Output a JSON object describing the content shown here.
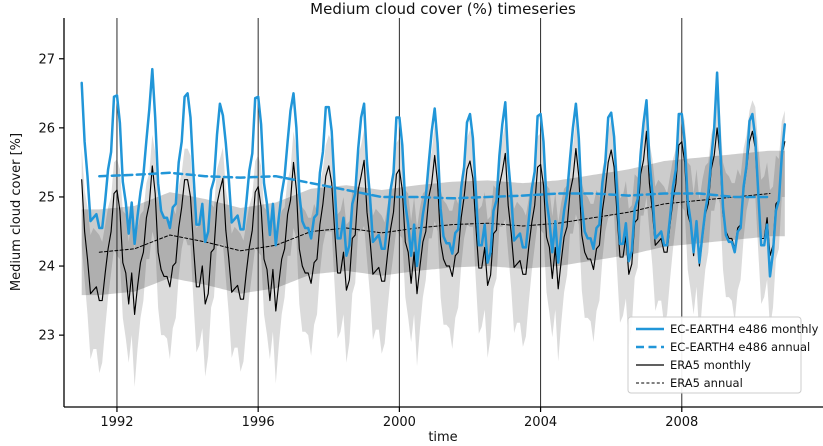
{
  "chart_data": {
    "type": "line",
    "title": "Medium cloud cover (%) timeseries",
    "xlabel": "time",
    "ylabel": "Medium cloud cover [%]",
    "xlim": [
      1990.5,
      2012.0
    ],
    "ylim": [
      21.96,
      27.59
    ],
    "x_ticks": [
      1992,
      1996,
      2000,
      2004,
      2008
    ],
    "y_ticks": [
      23,
      24,
      25,
      26,
      27
    ],
    "grid": "vertical-only",
    "start_year": 1991,
    "n_months": 240,
    "series": [
      {
        "id": "ec_monthly",
        "name": "EC-EARTH4 e486 monthly",
        "resolution": "monthly",
        "color": "#2196d8",
        "width": 2.5,
        "dash": null,
        "values": [
          26.65,
          25.8,
          25.3,
          24.65,
          24.7,
          24.75,
          24.55,
          24.55,
          24.95,
          25.4,
          25.65,
          26.45,
          26.47,
          26.07,
          25.22,
          24.92,
          24.47,
          24.92,
          24.32,
          24.72,
          25.07,
          25.32,
          25.82,
          26.27,
          26.85,
          26.15,
          25.2,
          24.8,
          24.7,
          24.7,
          24.55,
          24.85,
          24.9,
          25.5,
          25.8,
          26.45,
          26.5,
          26.15,
          25.35,
          24.6,
          24.6,
          24.9,
          24.35,
          24.5,
          25.1,
          25.25,
          25.9,
          26.35,
          26.18,
          25.78,
          25.28,
          24.63,
          24.68,
          24.73,
          24.53,
          24.53,
          24.93,
          25.38,
          25.63,
          26.43,
          26.45,
          26.05,
          25.2,
          24.9,
          24.45,
          24.9,
          24.3,
          24.7,
          25.05,
          25.3,
          25.8,
          26.25,
          26.5,
          26.0,
          25.05,
          24.65,
          24.55,
          24.55,
          24.4,
          24.7,
          24.75,
          25.35,
          25.65,
          26.3,
          26.3,
          25.95,
          25.15,
          24.4,
          24.4,
          24.7,
          24.15,
          24.3,
          24.9,
          25.05,
          25.7,
          26.15,
          26.35,
          25.5,
          25.0,
          24.35,
          24.4,
          24.45,
          24.25,
          24.25,
          24.65,
          25.1,
          25.35,
          26.15,
          26.15,
          25.75,
          24.9,
          24.6,
          24.15,
          24.6,
          24.0,
          24.4,
          24.75,
          25.0,
          25.5,
          25.95,
          26.28,
          25.78,
          24.83,
          24.43,
          24.33,
          24.33,
          24.18,
          24.48,
          24.53,
          25.13,
          25.43,
          26.08,
          26.2,
          25.85,
          25.05,
          24.3,
          24.3,
          24.6,
          24.05,
          24.2,
          24.8,
          24.95,
          25.6,
          26.05,
          26.37,
          25.52,
          25.02,
          24.37,
          24.42,
          24.47,
          24.27,
          24.27,
          24.67,
          25.12,
          25.37,
          26.17,
          26.2,
          25.8,
          24.95,
          24.65,
          24.2,
          24.65,
          24.05,
          24.45,
          24.8,
          25.05,
          25.55,
          26.0,
          26.35,
          25.85,
          24.9,
          24.5,
          24.4,
          24.4,
          24.25,
          24.55,
          24.6,
          25.2,
          25.5,
          26.15,
          26.22,
          25.87,
          25.07,
          24.32,
          24.32,
          24.62,
          24.07,
          24.22,
          24.82,
          24.97,
          25.62,
          26.07,
          26.4,
          25.55,
          25.05,
          24.4,
          24.45,
          24.5,
          24.3,
          24.3,
          24.7,
          25.15,
          25.4,
          26.2,
          26.2,
          25.8,
          24.95,
          24.65,
          24.2,
          24.65,
          24.05,
          24.45,
          24.8,
          25.05,
          25.55,
          26.0,
          26.8,
          25.8,
          24.85,
          24.45,
          24.35,
          24.35,
          24.2,
          24.5,
          24.55,
          25.15,
          25.45,
          26.1,
          26.2,
          25.85,
          25.05,
          24.3,
          24.3,
          24.6,
          23.85,
          24.2,
          24.8,
          24.95,
          25.6,
          26.05
        ]
      },
      {
        "id": "ec_annual",
        "name": "EC-EARTH4 e486 annual",
        "resolution": "annual",
        "color": "#2196d8",
        "width": 2.5,
        "dash": "8,4.5",
        "values": [
          25.3,
          25.32,
          25.35,
          25.3,
          25.28,
          25.3,
          25.2,
          25.1,
          25.0,
          25.0,
          24.98,
          25.0,
          25.02,
          25.05,
          25.05,
          25.02,
          25.05,
          25.05,
          25.0,
          25.0
        ]
      },
      {
        "id": "era5_monthly",
        "name": "ERA5 monthly",
        "resolution": "monthly",
        "color": "#000000",
        "width": 1.15,
        "dash": null,
        "values": [
          25.25,
          24.5,
          24.1,
          23.6,
          23.65,
          23.7,
          23.5,
          23.5,
          23.9,
          24.25,
          24.5,
          25.05,
          25.1,
          24.8,
          24.05,
          23.9,
          23.45,
          23.9,
          23.3,
          23.7,
          24.05,
          24.2,
          24.7,
          24.9,
          25.45,
          25.05,
          24.2,
          23.95,
          23.85,
          23.85,
          23.7,
          24.0,
          24.05,
          24.55,
          24.85,
          25.25,
          25.25,
          25.0,
          24.3,
          23.7,
          23.7,
          24.0,
          23.45,
          23.6,
          24.2,
          24.25,
          24.9,
          25.1,
          25.27,
          24.52,
          24.12,
          23.62,
          23.67,
          23.72,
          23.52,
          23.52,
          23.92,
          24.27,
          24.52,
          25.07,
          25.15,
          24.85,
          24.1,
          23.95,
          23.5,
          23.95,
          23.35,
          23.75,
          24.1,
          24.25,
          24.75,
          24.95,
          25.5,
          25.1,
          24.25,
          24.0,
          23.9,
          23.9,
          23.75,
          24.05,
          24.1,
          24.6,
          24.9,
          25.3,
          25.45,
          25.2,
          24.5,
          23.9,
          23.9,
          24.2,
          23.65,
          23.8,
          24.4,
          24.45,
          25.1,
          25.3,
          25.53,
          24.78,
          24.38,
          23.88,
          23.93,
          23.98,
          23.78,
          23.78,
          24.18,
          24.53,
          24.78,
          25.33,
          25.4,
          25.1,
          24.35,
          24.2,
          23.75,
          24.2,
          23.6,
          24.0,
          24.35,
          24.5,
          25.0,
          25.2,
          25.6,
          25.2,
          24.35,
          24.1,
          24.0,
          24.0,
          23.85,
          24.15,
          24.2,
          24.7,
          25.0,
          25.4,
          25.52,
          25.27,
          24.57,
          23.97,
          23.97,
          24.27,
          23.72,
          23.87,
          24.47,
          24.52,
          25.17,
          25.37,
          25.63,
          24.88,
          24.48,
          23.98,
          24.03,
          24.08,
          23.88,
          23.88,
          24.28,
          24.63,
          24.88,
          25.43,
          25.47,
          25.17,
          24.42,
          24.27,
          23.82,
          24.27,
          23.67,
          24.07,
          24.42,
          24.57,
          25.07,
          25.27,
          25.7,
          25.3,
          24.45,
          24.2,
          24.1,
          24.1,
          23.95,
          24.25,
          24.3,
          24.8,
          25.1,
          25.5,
          25.68,
          25.43,
          24.73,
          24.13,
          24.13,
          24.43,
          23.88,
          24.03,
          24.63,
          24.68,
          25.33,
          25.53,
          25.95,
          25.2,
          24.8,
          24.3,
          24.35,
          24.4,
          24.2,
          24.2,
          24.6,
          24.95,
          25.2,
          25.75,
          25.8,
          25.5,
          24.75,
          24.6,
          24.15,
          24.6,
          24.0,
          24.4,
          24.75,
          24.9,
          25.4,
          25.6,
          26.0,
          25.6,
          24.75,
          24.5,
          24.4,
          24.4,
          24.25,
          24.55,
          24.6,
          25.1,
          25.4,
          25.8,
          25.95,
          25.7,
          25.0,
          24.4,
          24.4,
          24.7,
          24.15,
          24.3,
          24.9,
          24.95,
          25.6,
          25.8
        ]
      },
      {
        "id": "era5_annual",
        "name": "ERA5 annual",
        "resolution": "annual",
        "color": "#000000",
        "width": 1.0,
        "dash": "3,2.2",
        "values": [
          24.2,
          24.25,
          24.45,
          24.35,
          24.22,
          24.3,
          24.5,
          24.55,
          24.48,
          24.55,
          24.6,
          24.62,
          24.58,
          24.62,
          24.7,
          24.78,
          24.9,
          24.95,
          25.0,
          25.05
        ]
      }
    ],
    "bands": [
      {
        "id": "light_band",
        "around": "era5_monthly",
        "upper_halfwidth_by_month": [
          0.45,
          0.6,
          0.75,
          0.85,
          0.9,
          0.8,
          0.95,
          0.85,
          0.7,
          0.6,
          0.5,
          0.45
        ],
        "lower_halfwidth_by_month": [
          0.95,
          0.7,
          0.8,
          0.95,
          0.85,
          0.9,
          1.05,
          0.9,
          0.8,
          0.7,
          0.6,
          0.8
        ],
        "color": "#000000",
        "opacity": 0.14
      },
      {
        "id": "dark_band",
        "around": "era5_annual",
        "halfwidth": 0.62,
        "color": "#000000",
        "opacity": 0.2
      }
    ],
    "legend": {
      "position": "lower right",
      "entries": [
        "EC-EARTH4 e486 monthly",
        "EC-EARTH4 e486 annual",
        "ERA5 monthly",
        "ERA5 annual"
      ]
    }
  }
}
